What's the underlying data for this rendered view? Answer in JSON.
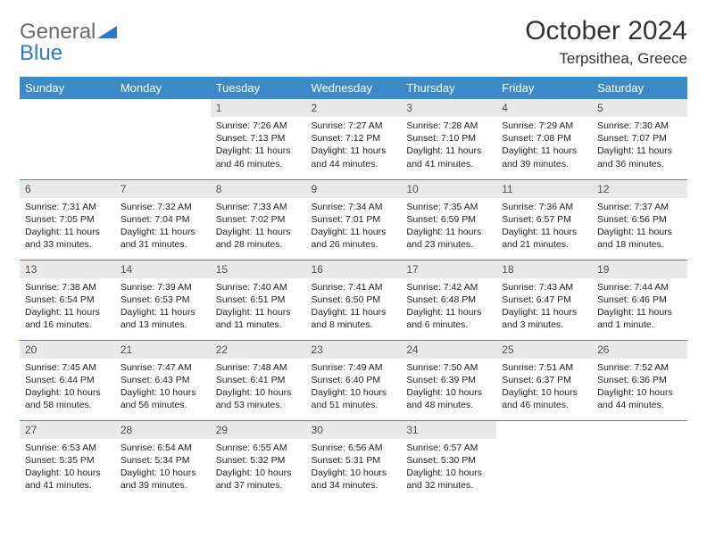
{
  "brand": {
    "part1": "General",
    "part2": "Blue"
  },
  "title": "October 2024",
  "location": "Terpsithea, Greece",
  "colors": {
    "header_bg": "#3b8bc8",
    "header_text": "#ffffff",
    "daynum_bg": "#e9e9e9",
    "row_divider": "#3b8bc8",
    "logo_gray": "#6a6a6a",
    "logo_blue": "#2f7bbf"
  },
  "day_names": [
    "Sunday",
    "Monday",
    "Tuesday",
    "Wednesday",
    "Thursday",
    "Friday",
    "Saturday"
  ],
  "weeks": [
    [
      null,
      null,
      {
        "n": "1",
        "sr": "7:26 AM",
        "ss": "7:13 PM",
        "dl": "11 hours and 46 minutes."
      },
      {
        "n": "2",
        "sr": "7:27 AM",
        "ss": "7:12 PM",
        "dl": "11 hours and 44 minutes."
      },
      {
        "n": "3",
        "sr": "7:28 AM",
        "ss": "7:10 PM",
        "dl": "11 hours and 41 minutes."
      },
      {
        "n": "4",
        "sr": "7:29 AM",
        "ss": "7:08 PM",
        "dl": "11 hours and 39 minutes."
      },
      {
        "n": "5",
        "sr": "7:30 AM",
        "ss": "7:07 PM",
        "dl": "11 hours and 36 minutes."
      }
    ],
    [
      {
        "n": "6",
        "sr": "7:31 AM",
        "ss": "7:05 PM",
        "dl": "11 hours and 33 minutes."
      },
      {
        "n": "7",
        "sr": "7:32 AM",
        "ss": "7:04 PM",
        "dl": "11 hours and 31 minutes."
      },
      {
        "n": "8",
        "sr": "7:33 AM",
        "ss": "7:02 PM",
        "dl": "11 hours and 28 minutes."
      },
      {
        "n": "9",
        "sr": "7:34 AM",
        "ss": "7:01 PM",
        "dl": "11 hours and 26 minutes."
      },
      {
        "n": "10",
        "sr": "7:35 AM",
        "ss": "6:59 PM",
        "dl": "11 hours and 23 minutes."
      },
      {
        "n": "11",
        "sr": "7:36 AM",
        "ss": "6:57 PM",
        "dl": "11 hours and 21 minutes."
      },
      {
        "n": "12",
        "sr": "7:37 AM",
        "ss": "6:56 PM",
        "dl": "11 hours and 18 minutes."
      }
    ],
    [
      {
        "n": "13",
        "sr": "7:38 AM",
        "ss": "6:54 PM",
        "dl": "11 hours and 16 minutes."
      },
      {
        "n": "14",
        "sr": "7:39 AM",
        "ss": "6:53 PM",
        "dl": "11 hours and 13 minutes."
      },
      {
        "n": "15",
        "sr": "7:40 AM",
        "ss": "6:51 PM",
        "dl": "11 hours and 11 minutes."
      },
      {
        "n": "16",
        "sr": "7:41 AM",
        "ss": "6:50 PM",
        "dl": "11 hours and 8 minutes."
      },
      {
        "n": "17",
        "sr": "7:42 AM",
        "ss": "6:48 PM",
        "dl": "11 hours and 6 minutes."
      },
      {
        "n": "18",
        "sr": "7:43 AM",
        "ss": "6:47 PM",
        "dl": "11 hours and 3 minutes."
      },
      {
        "n": "19",
        "sr": "7:44 AM",
        "ss": "6:46 PM",
        "dl": "11 hours and 1 minute."
      }
    ],
    [
      {
        "n": "20",
        "sr": "7:45 AM",
        "ss": "6:44 PM",
        "dl": "10 hours and 58 minutes."
      },
      {
        "n": "21",
        "sr": "7:47 AM",
        "ss": "6:43 PM",
        "dl": "10 hours and 56 minutes."
      },
      {
        "n": "22",
        "sr": "7:48 AM",
        "ss": "6:41 PM",
        "dl": "10 hours and 53 minutes."
      },
      {
        "n": "23",
        "sr": "7:49 AM",
        "ss": "6:40 PM",
        "dl": "10 hours and 51 minutes."
      },
      {
        "n": "24",
        "sr": "7:50 AM",
        "ss": "6:39 PM",
        "dl": "10 hours and 48 minutes."
      },
      {
        "n": "25",
        "sr": "7:51 AM",
        "ss": "6:37 PM",
        "dl": "10 hours and 46 minutes."
      },
      {
        "n": "26",
        "sr": "7:52 AM",
        "ss": "6:36 PM",
        "dl": "10 hours and 44 minutes."
      }
    ],
    [
      {
        "n": "27",
        "sr": "6:53 AM",
        "ss": "5:35 PM",
        "dl": "10 hours and 41 minutes."
      },
      {
        "n": "28",
        "sr": "6:54 AM",
        "ss": "5:34 PM",
        "dl": "10 hours and 39 minutes."
      },
      {
        "n": "29",
        "sr": "6:55 AM",
        "ss": "5:32 PM",
        "dl": "10 hours and 37 minutes."
      },
      {
        "n": "30",
        "sr": "6:56 AM",
        "ss": "5:31 PM",
        "dl": "10 hours and 34 minutes."
      },
      {
        "n": "31",
        "sr": "6:57 AM",
        "ss": "5:30 PM",
        "dl": "10 hours and 32 minutes."
      },
      null,
      null
    ]
  ],
  "labels": {
    "sunrise": "Sunrise:",
    "sunset": "Sunset:",
    "daylight": "Daylight:"
  }
}
